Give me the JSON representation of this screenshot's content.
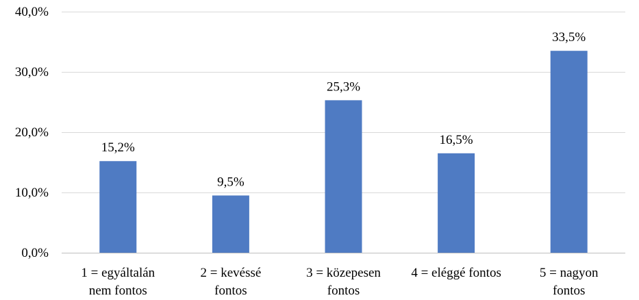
{
  "chart_data": {
    "type": "bar",
    "categories": [
      [
        "1 = egyáltalán",
        "nem fontos"
      ],
      [
        "2 = kevéssé",
        "fontos"
      ],
      [
        "3 = közepesen",
        "fontos"
      ],
      [
        "4 = eléggé fontos"
      ],
      [
        "5 = nagyon",
        "fontos"
      ]
    ],
    "values": [
      15.2,
      9.5,
      25.3,
      16.5,
      33.5
    ],
    "data_labels": [
      "15,2%",
      "9,5%",
      "25,3%",
      "16,5%",
      "33,5%"
    ],
    "ylim": [
      0,
      40
    ],
    "yticks": [
      0,
      10,
      20,
      30,
      40
    ],
    "ytick_labels": [
      "0,0%",
      "10,0%",
      "20,0%",
      "30,0%",
      "40,0%"
    ],
    "grid": true,
    "bar_color": "#4f7bc3",
    "title": "",
    "xlabel": "",
    "ylabel": ""
  }
}
